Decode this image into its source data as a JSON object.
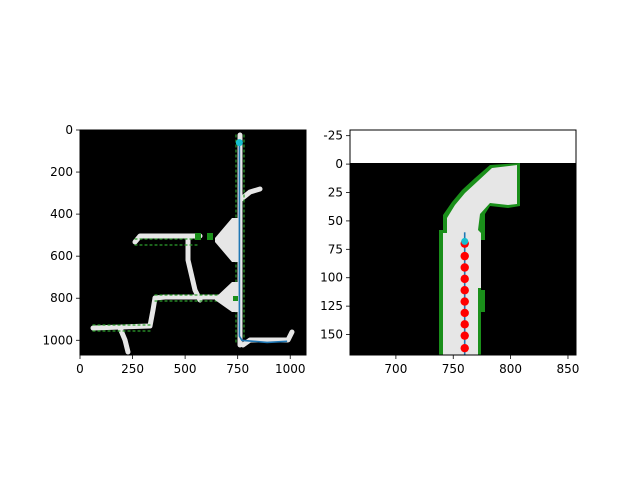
{
  "chart_data": [
    {
      "type": "map",
      "title": "",
      "xlabel": "",
      "ylabel": "",
      "xlim": [
        0,
        1075
      ],
      "ylim": [
        1070,
        0
      ],
      "xticks": [
        0,
        250,
        500,
        750,
        1000
      ],
      "yticks": [
        0,
        200,
        400,
        600,
        800,
        1000
      ],
      "path_series": {
        "color": "#1f77b4",
        "points": [
          [
            758,
            60
          ],
          [
            758,
            980
          ],
          [
            770,
            1000
          ],
          [
            890,
            1010
          ],
          [
            985,
            1005
          ]
        ]
      },
      "current_pose": {
        "x": 758,
        "y": 60,
        "color": "#17becf"
      },
      "map_colors": {
        "free": "#e6e6e6",
        "obstacle": "#000000",
        "frontier": "#1a8f1a"
      }
    },
    {
      "type": "map",
      "title": "",
      "xlabel": "",
      "ylabel": "",
      "xlim": [
        660,
        857
      ],
      "ylim": [
        168,
        -30
      ],
      "xticks": [
        700,
        750,
        800,
        850
      ],
      "yticks": [
        -25,
        0,
        25,
        50,
        75,
        100,
        125,
        150
      ],
      "path_series": {
        "color": "#1f77b4",
        "points": [
          [
            760,
            60
          ],
          [
            760,
            168
          ]
        ]
      },
      "waypoints": {
        "color": "#ff0000",
        "points": [
          [
            760,
            70
          ],
          [
            760,
            81
          ],
          [
            760,
            91
          ],
          [
            760,
            101
          ],
          [
            760,
            111
          ],
          [
            760,
            121
          ],
          [
            760,
            131
          ],
          [
            760,
            141
          ],
          [
            760,
            151
          ],
          [
            760,
            162
          ]
        ]
      },
      "current_pose": {
        "x": 760,
        "y": 68,
        "color": "#17becf"
      },
      "map_colors": {
        "free": "#e6e6e6",
        "obstacle": "#000000",
        "frontier": "#1a8f1a",
        "unknown": "#ffffff"
      }
    }
  ]
}
